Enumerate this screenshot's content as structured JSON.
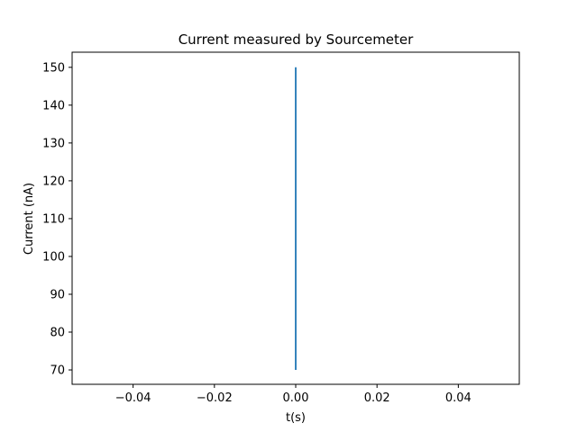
{
  "chart_data": {
    "type": "line",
    "title": "Current measured by Sourcemeter",
    "xlabel": "t(s)",
    "ylabel": "Current (nA)",
    "xlim": [
      -0.055,
      0.055
    ],
    "ylim": [
      66.2,
      154.0
    ],
    "x_ticks": [
      -0.04,
      -0.02,
      0.0,
      0.02,
      0.04
    ],
    "x_tick_labels": [
      "−0.04",
      "−0.02",
      "0.00",
      "0.02",
      "0.04"
    ],
    "y_ticks": [
      70,
      80,
      90,
      100,
      110,
      120,
      130,
      140,
      150
    ],
    "y_tick_labels": [
      "70",
      "80",
      "90",
      "100",
      "110",
      "120",
      "130",
      "140",
      "150"
    ],
    "grid": false,
    "legend": "none",
    "series": [
      {
        "color": "#1f77b4",
        "x": [
          0,
          0
        ],
        "y": [
          70,
          150
        ]
      }
    ]
  }
}
